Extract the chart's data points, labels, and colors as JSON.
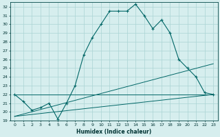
{
  "xlabel": "Humidex (Indice chaleur)",
  "background_color": "#d6eeee",
  "grid_color": "#aad4d4",
  "line_color": "#006666",
  "xlim": [
    -0.5,
    23.5
  ],
  "ylim": [
    19,
    32.5
  ],
  "xticks": [
    0,
    1,
    2,
    3,
    4,
    5,
    6,
    7,
    8,
    9,
    10,
    11,
    12,
    13,
    14,
    15,
    16,
    17,
    18,
    19,
    20,
    21,
    22,
    23
  ],
  "yticks": [
    19,
    20,
    21,
    22,
    23,
    24,
    25,
    26,
    27,
    28,
    29,
    30,
    31,
    32
  ],
  "line1_x": [
    0,
    1,
    2,
    3,
    4,
    5,
    6,
    7,
    8,
    9,
    10,
    11,
    12,
    13,
    14,
    15,
    16,
    17,
    18,
    19,
    20,
    21,
    22,
    23
  ],
  "line1_y": [
    22,
    21.2,
    20.2,
    20.5,
    21,
    19.2,
    21,
    23,
    26.5,
    28.5,
    30,
    31.5,
    31.5,
    31.5,
    32.3,
    31,
    29.5,
    30.5,
    29,
    26,
    25,
    24,
    22.2,
    22
  ],
  "line2_x": [
    0,
    23
  ],
  "line2_y": [
    22,
    22
  ],
  "line3_x": [
    0,
    23
  ],
  "line3_y": [
    19.5,
    22
  ],
  "line4_x": [
    0,
    23
  ],
  "line4_y": [
    19.5,
    25.5
  ]
}
